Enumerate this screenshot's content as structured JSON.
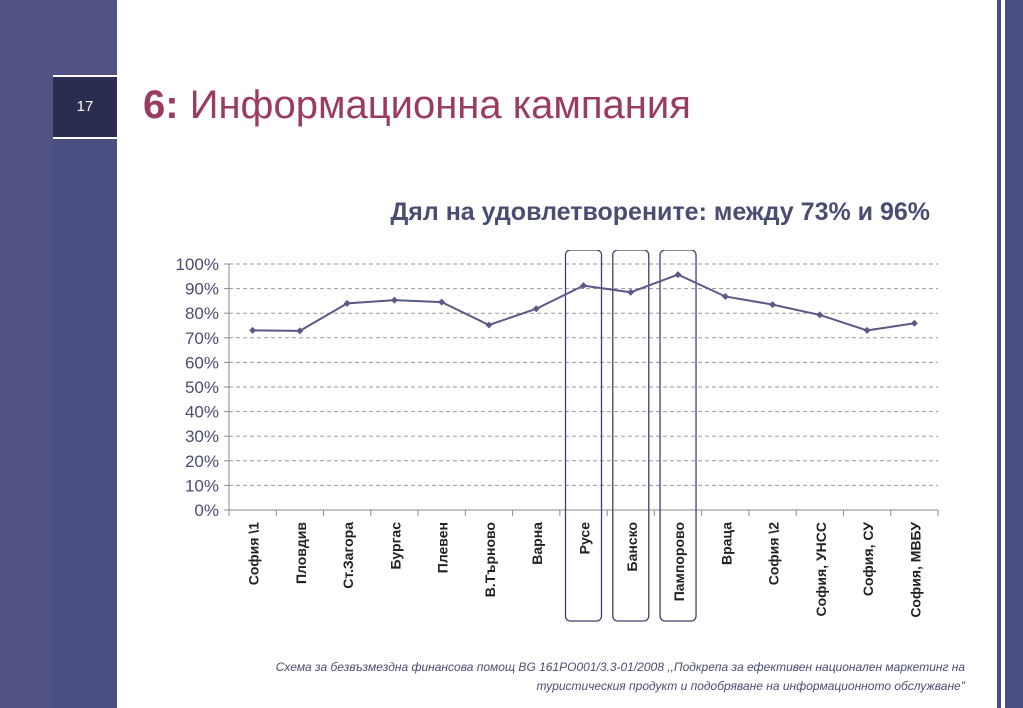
{
  "slide": {
    "number": "17",
    "title_number": "6:",
    "title_text": "Информационна кампания"
  },
  "colors": {
    "frame": "#4b4e80",
    "title": "#9a3c62",
    "chart_text": "#4a4d72",
    "line": "#5a5a86"
  },
  "chart_data": {
    "type": "line",
    "title": "Дял на удовлетворените: между 73% и 96%",
    "categories": [
      "София \\1",
      "Пловдив",
      "Ст.Загора",
      "Бургас",
      "Плевен",
      "В.Търново",
      "Варна",
      "Русе",
      "Банско",
      "Пампорово",
      "Враца",
      "София \\2",
      "София, УНСС",
      "София, СУ",
      "София, МВБУ"
    ],
    "series": [
      {
        "values": [
          73,
          72.8,
          84,
          85.3,
          84.5,
          75.2,
          81.8,
          91.2,
          88.5,
          95.7,
          86.8,
          83.5,
          79.3,
          73,
          75.9
        ]
      }
    ],
    "yticks": [
      "100%",
      "90%",
      "80%",
      "70%",
      "60%",
      "50%",
      "40%",
      "30%",
      "20%",
      "10%",
      "0%"
    ],
    "ylim": [
      0,
      100
    ],
    "highlighted_categories": [
      "Русе",
      "Банско",
      "Пампорово"
    ],
    "grid": true
  },
  "footnote": {
    "line1": "Схема за безвъзмездна финансова помощ  BG 161PO001/3.3-01/2008 ,,Подкрепа за ефективен национален маркетинг на",
    "line2": "туристическия продукт и подобряване на информационното обслужване\""
  }
}
